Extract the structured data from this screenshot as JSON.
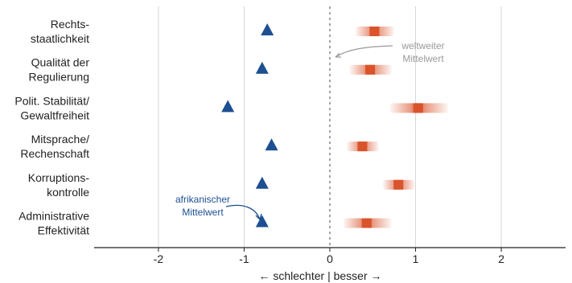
{
  "colors": {
    "africa": "#1d4f91",
    "country": "#d9532b",
    "grid": "#d6d6d6",
    "zero_line": "#a3a3a3",
    "global_annotation": "#9a9a9a"
  },
  "annotations": {
    "global": [
      "weltweiter",
      "Mittelwert"
    ],
    "africa": [
      "afrikanischer",
      "Mittelwert"
    ]
  },
  "chart_data": {
    "type": "scatter",
    "xlabel": "← schlechter | besser →",
    "xlim": [
      -2.75,
      2.75
    ],
    "x_ticks": [
      "-2",
      "-1",
      "0",
      "1",
      "2"
    ],
    "x_tick_values": [
      -2,
      -1,
      0,
      1,
      2
    ],
    "grid": true,
    "categories": [
      [
        "Rechts-",
        "staatlichkeit"
      ],
      [
        "Qualität der",
        "Regulierung"
      ],
      [
        "Polit. Stabilität/",
        "Gewaltfreiheit"
      ],
      [
        "Mitsprache/",
        "Rechenschaft"
      ],
      [
        "Korruptions-",
        "kontrolle"
      ],
      [
        "Administrative",
        "Effektivität"
      ]
    ],
    "series": [
      {
        "marker": "triangle",
        "values": [
          -0.73,
          -0.79,
          -1.19,
          -0.68,
          -0.79,
          -0.79
        ]
      },
      {
        "marker": "square-with-interval",
        "values": [
          0.52,
          0.47,
          1.03,
          0.38,
          0.8,
          0.43
        ],
        "interval_low": [
          0.3,
          0.23,
          0.7,
          0.2,
          0.62,
          0.16
        ],
        "interval_high": [
          0.75,
          0.72,
          1.38,
          0.57,
          0.99,
          0.72
        ]
      }
    ]
  }
}
